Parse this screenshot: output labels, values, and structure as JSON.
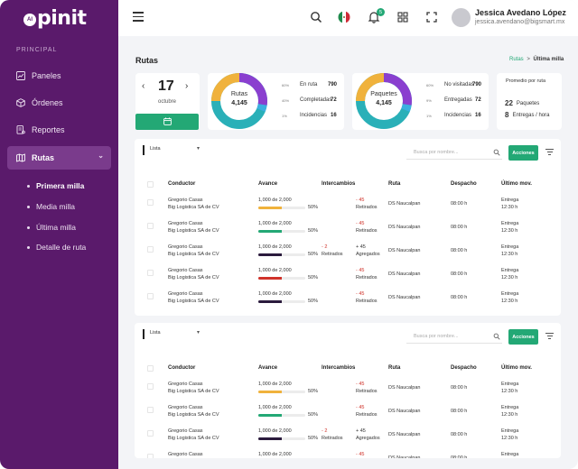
{
  "app": {
    "logo_prefix": "AI",
    "logo_text": "pinit"
  },
  "colors": {
    "sidebar": "#5a1a6b",
    "accent": "#23a875",
    "danger": "#d0322a",
    "yellow": "#f0b23c",
    "purple": "#8a3fcf",
    "teal": "#2ab0b8"
  },
  "sidebar": {
    "section": "PRINCIPAL",
    "items": [
      {
        "label": "Paneles",
        "icon": "chart-icon"
      },
      {
        "label": "Órdenes",
        "icon": "box-icon"
      },
      {
        "label": "Reportes",
        "icon": "report-icon"
      },
      {
        "label": "Rutas",
        "icon": "map-icon",
        "active": true
      }
    ],
    "subitems": [
      {
        "label": "Primera milla",
        "active": true
      },
      {
        "label": "Media milla"
      },
      {
        "label": "Última milla"
      },
      {
        "label": "Detalle de ruta"
      }
    ]
  },
  "topbar": {
    "notif_count": "5",
    "user_name": "Jessica Avedano López",
    "user_email": "jessica.avendano@bigsmart.mx"
  },
  "page": {
    "title": "Rutas",
    "breadcrumb_link": "Rutas",
    "breadcrumb_sep": ">",
    "breadcrumb_current": "Última milla"
  },
  "date_card": {
    "day": "17",
    "month": "octubre"
  },
  "rutas_card": {
    "label": "Rutas",
    "value": "4,145",
    "legend": [
      {
        "pct": "60%",
        "label": "En ruta",
        "value": "790",
        "color": "#8a3fcf"
      },
      {
        "pct": "40%",
        "label": "Completadas",
        "value": "72",
        "color": "#2ab0b8"
      },
      {
        "pct": "1%",
        "label": "Incidencias",
        "value": "16",
        "color": "#f0b23c"
      }
    ]
  },
  "paquetes_card": {
    "label": "Paquetes",
    "value": "4,145",
    "legend": [
      {
        "pct": "60%",
        "label": "No visitadas",
        "value": "790",
        "color": "#8a3fcf"
      },
      {
        "pct": "9%",
        "label": "Entregadas",
        "value": "72",
        "color": "#2ab0b8"
      },
      {
        "pct": "1%",
        "label": "Incidencias",
        "value": "16",
        "color": "#f0b23c"
      }
    ]
  },
  "promedio_card": {
    "title": "Promedio por ruta",
    "rows": [
      {
        "num": "22",
        "label": "Paquetes"
      },
      {
        "num": "8",
        "label": "Entregas / hora"
      }
    ]
  },
  "table1": {
    "select_value": "Lista",
    "search_placeholder": "Busca por nombre...",
    "action_label": "Acciones",
    "headers": [
      "Conductor",
      "Avance",
      "Intercambios",
      "Ruta",
      "Despacho",
      "Último mov."
    ],
    "rows": [
      {
        "driver": "Gregorio Casas",
        "company": "Big Logistica SA de CV",
        "progress_text": "1,000 de 2,000",
        "pct": "50%",
        "progress": 0.5,
        "bar_color": "#f0b23c",
        "ret_num": "",
        "ret_label": "",
        "int_num": "- 45",
        "int_label": "Retirados",
        "route": "DS Naucalpan",
        "dispatch": "08:00 h",
        "last1": "Entrega",
        "last2": "12:30 h"
      },
      {
        "driver": "Gregorio Casas",
        "company": "Big Logistica SA de CV",
        "progress_text": "1,000 de 2,000",
        "pct": "50%",
        "progress": 0.5,
        "bar_color": "#23a875",
        "ret_num": "",
        "ret_label": "",
        "int_num": "- 45",
        "int_label": "Retirados",
        "route": "DS Naucalpan",
        "dispatch": "08:00 h",
        "last1": "Entrega",
        "last2": "12:30 h"
      },
      {
        "driver": "Gregorio Casas",
        "company": "Big Logistica SA de CV",
        "progress_text": "1,000 de 2,000",
        "pct": "50%",
        "progress": 0.5,
        "bar_color": "#2b1b3d",
        "ret_num": "- 2",
        "ret_label": "Retirados",
        "int_num": "+ 45",
        "int_label": "Agregados",
        "route": "DS Naucalpan",
        "dispatch": "08:00 h",
        "last1": "Entrega",
        "last2": "12:30 h"
      },
      {
        "driver": "Gregorio Casas",
        "company": "Big Logistica SA de CV",
        "progress_text": "1,000 de 2,000",
        "pct": "50%",
        "progress": 0.5,
        "bar_color": "#d0322a",
        "ret_num": "",
        "ret_label": "",
        "int_num": "- 45",
        "int_label": "Retirados",
        "route": "DS Naucalpan",
        "dispatch": "08:00 h",
        "last1": "Entrega",
        "last2": "12:30 h"
      },
      {
        "driver": "Gregorio Casas",
        "company": "Big Logistica SA de CV",
        "progress_text": "1,000 de 2,000",
        "pct": "50%",
        "progress": 0.5,
        "bar_color": "#2b1b3d",
        "ret_num": "",
        "ret_label": "",
        "int_num": "- 45",
        "int_label": "Retirados",
        "route": "DS Naucalpan",
        "dispatch": "08:00 h",
        "last1": "Entrega",
        "last2": "12:30 h"
      }
    ]
  },
  "table2": {
    "select_value": "Lista",
    "search_placeholder": "Busca por nombre...",
    "action_label": "Acciones",
    "headers": [
      "Conductor",
      "Avance",
      "Intercambios",
      "Ruta",
      "Despacho",
      "Último mov."
    ],
    "rows": [
      {
        "driver": "Gregorio Casas",
        "company": "Big Logistica SA de CV",
        "progress_text": "1,000 de 2,000",
        "pct": "50%",
        "progress": 0.5,
        "bar_color": "#f0b23c",
        "ret_num": "",
        "ret_label": "",
        "int_num": "- 45",
        "int_label": "Retirados",
        "route": "DS Naucalpan",
        "dispatch": "08:00 h",
        "last1": "Entrega",
        "last2": "12:30 h"
      },
      {
        "driver": "Gregorio Casas",
        "company": "Big Logistica SA de CV",
        "progress_text": "1,000 de 2,000",
        "pct": "50%",
        "progress": 0.5,
        "bar_color": "#23a875",
        "ret_num": "",
        "ret_label": "",
        "int_num": "- 45",
        "int_label": "Retirados",
        "route": "DS Naucalpan",
        "dispatch": "08:00 h",
        "last1": "Entrega",
        "last2": "12:30 h"
      },
      {
        "driver": "Gregorio Casas",
        "company": "Big Logistica SA de CV",
        "progress_text": "1,000 de 2,000",
        "pct": "50%",
        "progress": 0.5,
        "bar_color": "#2b1b3d",
        "ret_num": "- 2",
        "ret_label": "Retirados",
        "int_num": "+ 45",
        "int_label": "Agregados",
        "route": "DS Naucalpan",
        "dispatch": "08:00 h",
        "last1": "Entrega",
        "last2": "12:30 h"
      },
      {
        "driver": "Gregorio Casas",
        "company": "Big Logistica SA de CV",
        "progress_text": "1,000 de 2,000",
        "pct": "50%",
        "progress": 0.5,
        "bar_color": "#2b1b3d",
        "ret_num": "",
        "ret_label": "",
        "int_num": "- 45",
        "int_label": "Retirados",
        "route": "DS Naucalpan",
        "dispatch": "08:00 h",
        "last1": "Entrega",
        "last2": "12:30 h"
      }
    ]
  }
}
